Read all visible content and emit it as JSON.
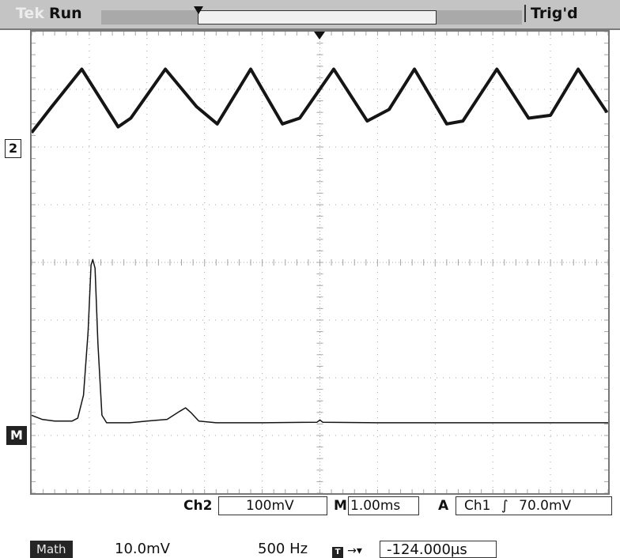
{
  "status_bar": {
    "brand": "Tek",
    "acquisition_state": "Run",
    "trigger_state": "Trig'd"
  },
  "markers": {
    "channel2": "2",
    "math": "M"
  },
  "readouts": {
    "channel2_label": "Ch2",
    "channel2_vdiv": "100mV",
    "timebase_label": "M",
    "timebase": "1.00ms",
    "trigger_label": "A",
    "trigger_source": "Ch1",
    "trigger_slope_symbol": "∫",
    "trigger_level": "70.0mV",
    "math_label": "Math",
    "math_vdiv": "10.0mV",
    "math_freq": "500 Hz",
    "trig_icon_text": "T",
    "trig_arrow": "→▾",
    "horizontal_position": "-124.000µs"
  },
  "colors": {
    "trace": "#151515",
    "grid": "#a5a5a5",
    "status_bar": "#c4c4c4"
  },
  "chart_data": {
    "type": "line",
    "grid": true,
    "x_divisions": 10,
    "y_divisions": 8,
    "series": [
      {
        "points": [
          [
            0,
            6.25
          ],
          [
            0.35,
            6.7
          ],
          [
            0.87,
            7.35
          ],
          [
            1.5,
            6.35
          ],
          [
            1.72,
            6.5
          ],
          [
            2.32,
            7.35
          ],
          [
            2.86,
            6.7
          ],
          [
            3.22,
            6.4
          ],
          [
            3.8,
            7.35
          ],
          [
            4.35,
            6.4
          ],
          [
            4.65,
            6.5
          ],
          [
            5.24,
            7.35
          ],
          [
            5.82,
            6.45
          ],
          [
            6.2,
            6.65
          ],
          [
            6.64,
            7.35
          ],
          [
            7.2,
            6.4
          ],
          [
            7.48,
            6.45
          ],
          [
            8.07,
            7.35
          ],
          [
            8.62,
            6.5
          ],
          [
            9.0,
            6.55
          ],
          [
            9.48,
            7.35
          ],
          [
            9.98,
            6.6
          ]
        ]
      },
      {
        "points": [
          [
            0,
            1.35
          ],
          [
            0.18,
            1.28
          ],
          [
            0.4,
            1.25
          ],
          [
            0.7,
            1.25
          ],
          [
            0.8,
            1.3
          ],
          [
            0.9,
            1.7
          ],
          [
            0.98,
            2.8
          ],
          [
            1.03,
            3.95
          ],
          [
            1.06,
            4.05
          ],
          [
            1.1,
            3.9
          ],
          [
            1.15,
            2.6
          ],
          [
            1.22,
            1.35
          ],
          [
            1.3,
            1.22
          ],
          [
            1.7,
            1.22
          ],
          [
            2.0,
            1.25
          ],
          [
            2.35,
            1.28
          ],
          [
            2.57,
            1.42
          ],
          [
            2.67,
            1.48
          ],
          [
            2.76,
            1.4
          ],
          [
            2.9,
            1.25
          ],
          [
            3.2,
            1.22
          ],
          [
            3.5,
            1.22
          ],
          [
            4.0,
            1.22
          ],
          [
            4.95,
            1.23
          ],
          [
            5.0,
            1.27
          ],
          [
            5.05,
            1.23
          ],
          [
            6.0,
            1.22
          ],
          [
            10.0,
            1.22
          ]
        ]
      }
    ]
  }
}
